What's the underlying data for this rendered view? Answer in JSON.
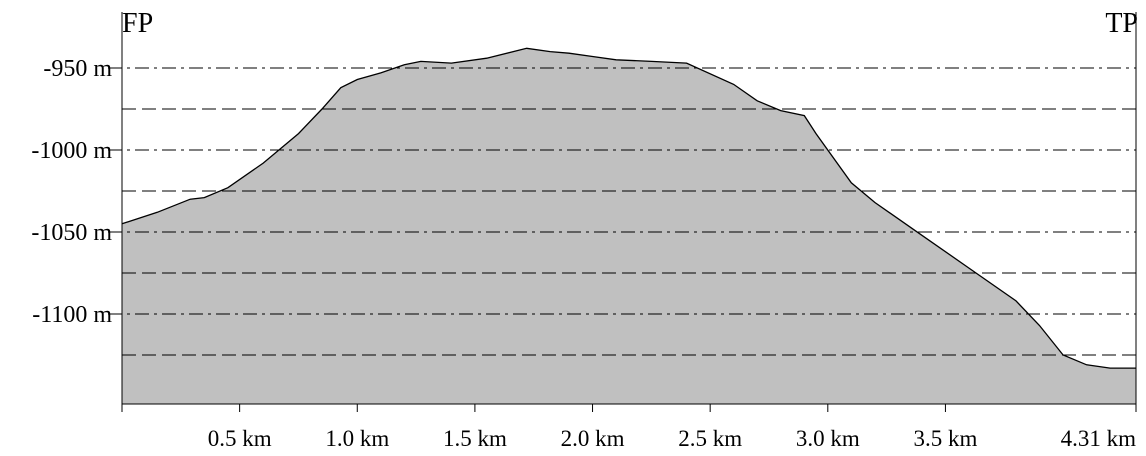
{
  "chart_data": {
    "type": "area",
    "corner_labels": {
      "left": "FP",
      "right": "TP"
    },
    "x": [
      0.0,
      0.15,
      0.29,
      0.35,
      0.45,
      0.6,
      0.75,
      0.85,
      0.93,
      1.0,
      1.1,
      1.2,
      1.27,
      1.4,
      1.55,
      1.72,
      1.82,
      1.9,
      2.0,
      2.1,
      2.25,
      2.4,
      2.6,
      2.7,
      2.8,
      2.9,
      2.95,
      3.1,
      3.2,
      3.4,
      3.6,
      3.8,
      3.9,
      4.0,
      4.1,
      4.2,
      4.31
    ],
    "y": [
      -1045,
      -1038,
      -1030,
      -1029,
      -1023,
      -1008,
      -990,
      -975,
      -962,
      -957,
      -953,
      -948,
      -946,
      -947,
      -944,
      -938,
      -940,
      -941,
      -943,
      -945,
      -946,
      -947,
      -960,
      -970,
      -976,
      -979,
      -990,
      -1020,
      -1032,
      -1052,
      -1072,
      -1092,
      -1107,
      -1125,
      -1131,
      -1133,
      -1133
    ],
    "xlim": [
      0,
      4.31
    ],
    "ylim": [
      -1150,
      -930
    ],
    "yticks": [
      {
        "value": -950,
        "label": "-950 m"
      },
      {
        "value": -1000,
        "label": "-1000 m"
      },
      {
        "value": -1050,
        "label": "-1050 m"
      },
      {
        "value": -1100,
        "label": "-1100 m"
      }
    ],
    "minor_gridlines": [
      -975,
      -1025,
      -1075,
      -1125
    ],
    "xticks": [
      {
        "value": 0.5,
        "label": "0.5 km"
      },
      {
        "value": 1.0,
        "label": "1.0 km"
      },
      {
        "value": 1.5,
        "label": "1.5 km"
      },
      {
        "value": 2.0,
        "label": "2.0 km"
      },
      {
        "value": 2.5,
        "label": "2.5 km"
      },
      {
        "value": 3.0,
        "label": "3.0 km"
      },
      {
        "value": 3.5,
        "label": "3.5 km"
      },
      {
        "value": 4.31,
        "label": "4.31 km"
      }
    ],
    "fill_color": "#c0c0c0",
    "line_color": "#000000",
    "grid": true
  }
}
